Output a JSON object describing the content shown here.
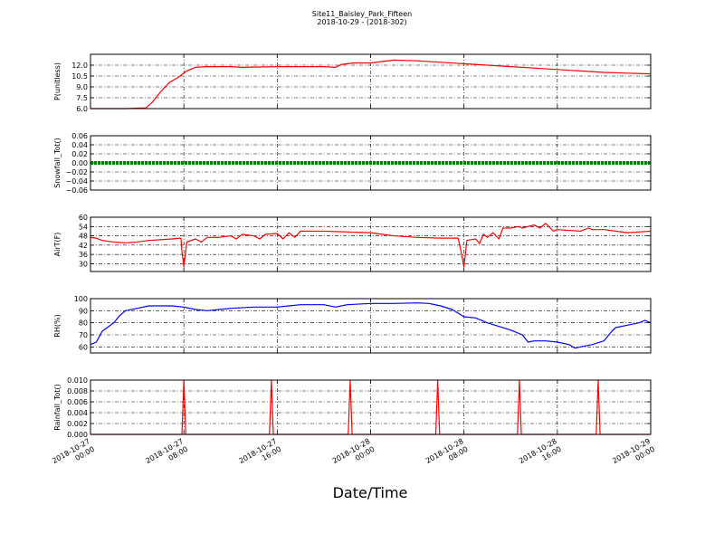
{
  "figure": {
    "title_line1": "Site11_Baisley_Park_Fifteen",
    "title_line2": "2018-10-29 - (2018-302)",
    "xlabel": "Date/Time"
  },
  "chart_data": {
    "type": "line",
    "x_range": [
      "2018-10-27 00:00",
      "2018-10-29 00:00"
    ],
    "x_ticks": [
      {
        "t": "2018-10-27 00:00",
        "line1": "2018-10-27",
        "line2": "00:00"
      },
      {
        "t": "2018-10-27 08:00",
        "line1": "2018-10-27",
        "line2": "08:00"
      },
      {
        "t": "2018-10-27 16:00",
        "line1": "2018-10-27",
        "line2": "16:00"
      },
      {
        "t": "2018-10-28 00:00",
        "line1": "2018-10-28",
        "line2": "00:00"
      },
      {
        "t": "2018-10-28 08:00",
        "line1": "2018-10-28",
        "line2": "08:00"
      },
      {
        "t": "2018-10-28 16:00",
        "line1": "2018-10-28",
        "line2": "16:00"
      },
      {
        "t": "2018-10-29 00:00",
        "line1": "2018-10-29",
        "line2": "00:00"
      }
    ],
    "grid": true,
    "panels": [
      {
        "ylabel": "P(unitless)",
        "ylim": [
          6.0,
          13.5
        ],
        "yticks": [
          "6.0",
          "7.5",
          "9.0",
          "10.5",
          "12.0"
        ],
        "ytick_values": [
          6.0,
          7.5,
          9.0,
          10.5,
          12.0
        ],
        "color": "#ff0000",
        "style": "line",
        "points": [
          [
            "2018-10-27 00:00",
            6.0
          ],
          [
            "2018-10-27 03:00",
            6.0
          ],
          [
            "2018-10-27 04:45",
            6.1
          ],
          [
            "2018-10-27 05:15",
            6.8
          ],
          [
            "2018-10-27 06:00",
            8.3
          ],
          [
            "2018-10-27 06:45",
            9.6
          ],
          [
            "2018-10-27 07:30",
            10.3
          ],
          [
            "2018-10-27 08:15",
            11.2
          ],
          [
            "2018-10-27 09:00",
            11.7
          ],
          [
            "2018-10-27 10:00",
            11.8
          ],
          [
            "2018-10-27 12:00",
            11.8
          ],
          [
            "2018-10-27 13:00",
            11.7
          ],
          [
            "2018-10-27 16:00",
            11.8
          ],
          [
            "2018-10-27 20:00",
            11.8
          ],
          [
            "2018-10-27 21:00",
            11.7
          ],
          [
            "2018-10-27 21:30",
            12.1
          ],
          [
            "2018-10-27 22:30",
            12.3
          ],
          [
            "2018-10-28 00:00",
            12.3
          ],
          [
            "2018-10-28 01:00",
            12.5
          ],
          [
            "2018-10-28 02:00",
            12.7
          ],
          [
            "2018-10-28 04:00",
            12.6
          ],
          [
            "2018-10-28 06:00",
            12.4
          ],
          [
            "2018-10-28 08:00",
            12.2
          ],
          [
            "2018-10-28 10:00",
            12.0
          ],
          [
            "2018-10-28 12:00",
            11.8
          ],
          [
            "2018-10-28 14:00",
            11.6
          ],
          [
            "2018-10-28 16:00",
            11.4
          ],
          [
            "2018-10-28 18:00",
            11.2
          ],
          [
            "2018-10-28 20:00",
            11.0
          ],
          [
            "2018-10-28 22:00",
            10.9
          ],
          [
            "2018-10-29 00:00",
            10.8
          ]
        ]
      },
      {
        "ylabel": "Snowfall_Tot()",
        "ylim": [
          -0.06,
          0.06
        ],
        "yticks": [
          "−0.06",
          "−0.04",
          "−0.02",
          "0.00",
          "0.02",
          "0.04",
          "0.06"
        ],
        "ytick_values": [
          -0.06,
          -0.04,
          -0.02,
          0.0,
          0.02,
          0.04,
          0.06
        ],
        "color": "#008000",
        "style": "dots",
        "points": [
          [
            "2018-10-27 00:00",
            0.0
          ],
          [
            "2018-10-29 00:00",
            0.0
          ]
        ]
      },
      {
        "ylabel": "AirT(F)",
        "ylim": [
          25,
          60
        ],
        "yticks": [
          "30",
          "36",
          "42",
          "48",
          "54",
          "60"
        ],
        "ytick_values": [
          30,
          36,
          42,
          48,
          54,
          60
        ],
        "color": "#ff0000",
        "style": "line",
        "points": [
          [
            "2018-10-27 00:00",
            47
          ],
          [
            "2018-10-27 00:30",
            46.5
          ],
          [
            "2018-10-27 01:00",
            45
          ],
          [
            "2018-10-27 02:00",
            44
          ],
          [
            "2018-10-27 03:00",
            43.5
          ],
          [
            "2018-10-27 04:00",
            44
          ],
          [
            "2018-10-27 05:00",
            45
          ],
          [
            "2018-10-27 06:00",
            45.5
          ],
          [
            "2018-10-27 07:00",
            46
          ],
          [
            "2018-10-27 07:45",
            46.5
          ],
          [
            "2018-10-27 07:50",
            38
          ],
          [
            "2018-10-27 08:00",
            28
          ],
          [
            "2018-10-27 08:15",
            44
          ],
          [
            "2018-10-27 09:00",
            46
          ],
          [
            "2018-10-27 09:30",
            44
          ],
          [
            "2018-10-27 10:00",
            47
          ],
          [
            "2018-10-27 11:00",
            47
          ],
          [
            "2018-10-27 12:00",
            48
          ],
          [
            "2018-10-27 12:30",
            46
          ],
          [
            "2018-10-27 13:00",
            49
          ],
          [
            "2018-10-27 14:00",
            48
          ],
          [
            "2018-10-27 14:30",
            46
          ],
          [
            "2018-10-27 15:00",
            49
          ],
          [
            "2018-10-27 16:00",
            49.5
          ],
          [
            "2018-10-27 16:30",
            46
          ],
          [
            "2018-10-27 17:00",
            50
          ],
          [
            "2018-10-27 17:30",
            47
          ],
          [
            "2018-10-27 18:00",
            51
          ],
          [
            "2018-10-27 20:00",
            51
          ],
          [
            "2018-10-27 22:00",
            50.5
          ],
          [
            "2018-10-28 00:00",
            50
          ],
          [
            "2018-10-28 01:00",
            49
          ],
          [
            "2018-10-28 02:00",
            48
          ],
          [
            "2018-10-28 04:00",
            47
          ],
          [
            "2018-10-28 06:00",
            46.5
          ],
          [
            "2018-10-28 07:30",
            46.5
          ],
          [
            "2018-10-28 07:45",
            38
          ],
          [
            "2018-10-28 08:00",
            28
          ],
          [
            "2018-10-28 08:15",
            45
          ],
          [
            "2018-10-28 09:00",
            46
          ],
          [
            "2018-10-28 09:20",
            43
          ],
          [
            "2018-10-28 09:40",
            49
          ],
          [
            "2018-10-28 10:00",
            47
          ],
          [
            "2018-10-28 10:30",
            50
          ],
          [
            "2018-10-28 11:00",
            46
          ],
          [
            "2018-10-28 11:20",
            53
          ],
          [
            "2018-10-28 12:00",
            53
          ],
          [
            "2018-10-28 12:40",
            54
          ],
          [
            "2018-10-28 13:00",
            53
          ],
          [
            "2018-10-28 14:00",
            55
          ],
          [
            "2018-10-28 14:30",
            53
          ],
          [
            "2018-10-28 15:00",
            56
          ],
          [
            "2018-10-28 15:40",
            51
          ],
          [
            "2018-10-28 16:00",
            52
          ],
          [
            "2018-10-28 18:00",
            51
          ],
          [
            "2018-10-28 18:40",
            53
          ],
          [
            "2018-10-28 19:00",
            52
          ],
          [
            "2018-10-28 20:00",
            52
          ],
          [
            "2018-10-28 21:00",
            51
          ],
          [
            "2018-10-28 22:00",
            50
          ],
          [
            "2018-10-28 23:00",
            50.5
          ],
          [
            "2018-10-29 00:00",
            51
          ]
        ]
      },
      {
        "ylabel": "RH(%)",
        "ylim": [
          55,
          100
        ],
        "yticks": [
          "60",
          "70",
          "80",
          "90",
          "100"
        ],
        "ytick_values": [
          60,
          70,
          80,
          90,
          100
        ],
        "color": "#0000ff",
        "style": "line",
        "points": [
          [
            "2018-10-27 00:00",
            62
          ],
          [
            "2018-10-27 00:30",
            64
          ],
          [
            "2018-10-27 01:00",
            73
          ],
          [
            "2018-10-27 02:00",
            80
          ],
          [
            "2018-10-27 02:30",
            86
          ],
          [
            "2018-10-27 03:00",
            90
          ],
          [
            "2018-10-27 04:00",
            92
          ],
          [
            "2018-10-27 05:00",
            94
          ],
          [
            "2018-10-27 06:00",
            94
          ],
          [
            "2018-10-27 07:00",
            94
          ],
          [
            "2018-10-27 08:00",
            93
          ],
          [
            "2018-10-27 09:00",
            91
          ],
          [
            "2018-10-27 10:00",
            90
          ],
          [
            "2018-10-27 11:00",
            91
          ],
          [
            "2018-10-27 12:00",
            92
          ],
          [
            "2018-10-27 14:00",
            93
          ],
          [
            "2018-10-27 16:00",
            93
          ],
          [
            "2018-10-27 17:00",
            94
          ],
          [
            "2018-10-27 18:00",
            95
          ],
          [
            "2018-10-27 20:00",
            95
          ],
          [
            "2018-10-27 21:00",
            93
          ],
          [
            "2018-10-27 22:00",
            95
          ],
          [
            "2018-10-28 00:00",
            96
          ],
          [
            "2018-10-28 02:00",
            96
          ],
          [
            "2018-10-28 04:00",
            96.5
          ],
          [
            "2018-10-28 05:00",
            96
          ],
          [
            "2018-10-28 06:00",
            94
          ],
          [
            "2018-10-28 07:00",
            91
          ],
          [
            "2018-10-28 08:00",
            85
          ],
          [
            "2018-10-28 09:00",
            84
          ],
          [
            "2018-10-28 10:00",
            80
          ],
          [
            "2018-10-28 11:00",
            77
          ],
          [
            "2018-10-28 12:00",
            74
          ],
          [
            "2018-10-28 13:00",
            70
          ],
          [
            "2018-10-28 13:30",
            64
          ],
          [
            "2018-10-28 14:00",
            65
          ],
          [
            "2018-10-28 15:00",
            65
          ],
          [
            "2018-10-28 16:00",
            64
          ],
          [
            "2018-10-28 17:00",
            62
          ],
          [
            "2018-10-28 17:30",
            59
          ],
          [
            "2018-10-28 18:00",
            60
          ],
          [
            "2018-10-28 19:00",
            62
          ],
          [
            "2018-10-28 20:00",
            65
          ],
          [
            "2018-10-28 20:40",
            73
          ],
          [
            "2018-10-28 21:00",
            76
          ],
          [
            "2018-10-28 22:00",
            78
          ],
          [
            "2018-10-28 23:00",
            80
          ],
          [
            "2018-10-28 23:30",
            82
          ],
          [
            "2018-10-29 00:00",
            80
          ]
        ]
      },
      {
        "ylabel": "Rainfall_Tot()",
        "ylim": [
          0.0,
          0.01
        ],
        "yticks": [
          "0.000",
          "0.002",
          "0.004",
          "0.006",
          "0.008",
          "0.010"
        ],
        "ytick_values": [
          0.0,
          0.002,
          0.004,
          0.006,
          0.008,
          0.01
        ],
        "color": "#ff0000",
        "style": "spikes",
        "spike_width_hours": 0.33,
        "spikes": [
          [
            "2018-10-27 08:00",
            0.01
          ],
          [
            "2018-10-27 15:30",
            0.01
          ],
          [
            "2018-10-27 22:15",
            0.01
          ],
          [
            "2018-10-28 05:45",
            0.01
          ],
          [
            "2018-10-28 12:45",
            0.01
          ],
          [
            "2018-10-28 19:30",
            0.01
          ]
        ]
      }
    ]
  }
}
